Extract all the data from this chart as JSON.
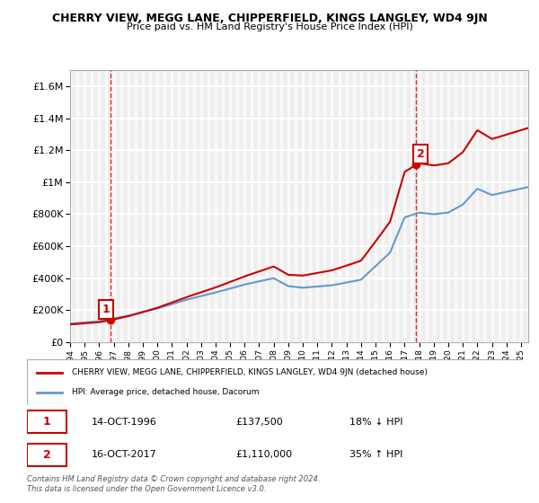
{
  "title": "CHERRY VIEW, MEGG LANE, CHIPPERFIELD, KINGS LANGLEY, WD4 9JN",
  "subtitle": "Price paid vs. HM Land Registry's House Price Index (HPI)",
  "legend_entry1": "CHERRY VIEW, MEGG LANE, CHIPPERFIELD, KINGS LANGLEY, WD4 9JN (detached house)",
  "legend_entry2": "HPI: Average price, detached house, Dacorum",
  "sale1_date": "14-OCT-1996",
  "sale1_price": "£137,500",
  "sale1_hpi": "18% ↓ HPI",
  "sale2_date": "16-OCT-2017",
  "sale2_price": "£1,110,000",
  "sale2_hpi": "35% ↑ HPI",
  "footnote": "Contains HM Land Registry data © Crown copyright and database right 2024.\nThis data is licensed under the Open Government Licence v3.0.",
  "ylim": [
    0,
    1700000
  ],
  "yticks": [
    0,
    200000,
    400000,
    600000,
    800000,
    1000000,
    1200000,
    1400000,
    1600000
  ],
  "ytick_labels": [
    "£0",
    "£200K",
    "£400K",
    "£600K",
    "£800K",
    "£1M",
    "£1.2M",
    "£1.4M",
    "£1.6M"
  ],
  "xlim_start": 1994.0,
  "xlim_end": 2025.5,
  "sale1_x": 1996.79,
  "sale1_y": 137500,
  "sale2_x": 2017.79,
  "sale2_y": 1110000,
  "red_color": "#cc0000",
  "blue_color": "#6699cc",
  "bg_color": "#f0f0f0",
  "plot_bg": "#ffffff",
  "hatch_color": "#e0e0e0"
}
